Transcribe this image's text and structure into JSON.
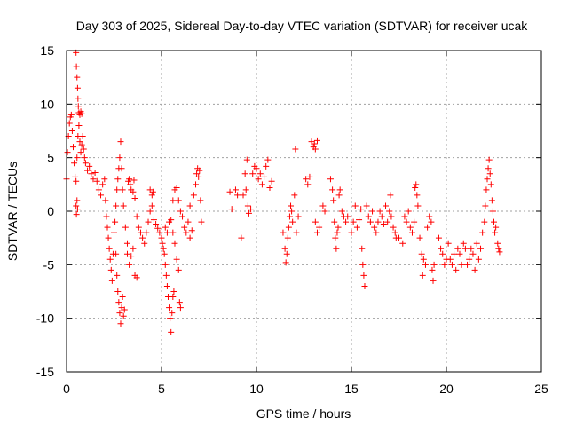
{
  "chart_data": {
    "type": "scatter",
    "title": "Day 303 of 2025, Sidereal Day-to-day VTEC variation (SDTVAR) for receiver ucak",
    "xlabel": "GPS time / hours",
    "ylabel": "SDTVAR / TECUs",
    "xlim": [
      0,
      25
    ],
    "ylim": [
      -15,
      15
    ],
    "xticks": [
      0,
      5,
      10,
      15,
      20,
      25
    ],
    "yticks": [
      -15,
      -10,
      -5,
      0,
      5,
      10,
      15
    ],
    "xtick_labels": [
      "0",
      "5",
      "10",
      "15",
      "20",
      "25"
    ],
    "ytick_labels": [
      "-15",
      "-10",
      "-5",
      "0",
      "5",
      "10",
      "15"
    ],
    "grid": true,
    "marker": "plus",
    "color": "#ff0000",
    "series": [
      {
        "name": "SDTVAR",
        "points": [
          [
            0.0,
            3.0
          ],
          [
            0.05,
            5.5
          ],
          [
            0.1,
            7.0
          ],
          [
            0.15,
            8.2
          ],
          [
            0.2,
            8.8
          ],
          [
            0.25,
            9.0
          ],
          [
            0.3,
            7.5
          ],
          [
            0.35,
            6.0
          ],
          [
            0.4,
            4.5
          ],
          [
            0.45,
            3.2
          ],
          [
            0.5,
            2.8
          ],
          [
            0.55,
            5.0
          ],
          [
            0.6,
            7.0
          ],
          [
            0.65,
            8.0
          ],
          [
            0.7,
            6.5
          ],
          [
            0.75,
            5.5
          ],
          [
            0.8,
            6.2
          ],
          [
            0.85,
            7.0
          ],
          [
            0.9,
            5.8
          ],
          [
            0.95,
            5.0
          ],
          [
            0.5,
            14.8
          ],
          [
            0.52,
            13.5
          ],
          [
            0.55,
            12.5
          ],
          [
            0.58,
            11.5
          ],
          [
            0.6,
            10.5
          ],
          [
            0.62,
            9.8
          ],
          [
            0.65,
            9.2
          ],
          [
            0.7,
            9.0
          ],
          [
            0.75,
            9.3
          ],
          [
            0.8,
            9.1
          ],
          [
            0.5,
            0.5
          ],
          [
            0.52,
            -0.3
          ],
          [
            0.55,
            1.0
          ],
          [
            0.58,
            0.2
          ],
          [
            1.0,
            4.5
          ],
          [
            1.1,
            3.8
          ],
          [
            1.2,
            4.2
          ],
          [
            1.3,
            3.5
          ],
          [
            1.4,
            3.0
          ],
          [
            1.5,
            3.6
          ],
          [
            1.6,
            2.8
          ],
          [
            1.7,
            2.0
          ],
          [
            1.8,
            1.5
          ],
          [
            1.9,
            2.5
          ],
          [
            2.0,
            3.0
          ],
          [
            2.05,
            1.0
          ],
          [
            2.1,
            -0.5
          ],
          [
            2.15,
            -1.5
          ],
          [
            2.2,
            -2.5
          ],
          [
            2.25,
            -3.5
          ],
          [
            2.3,
            -4.5
          ],
          [
            2.35,
            -5.5
          ],
          [
            2.4,
            -6.5
          ],
          [
            2.45,
            -4.0
          ],
          [
            2.5,
            -2.0
          ],
          [
            2.55,
            -1.0
          ],
          [
            2.6,
            0.5
          ],
          [
            2.65,
            2.0
          ],
          [
            2.7,
            3.0
          ],
          [
            2.75,
            4.0
          ],
          [
            2.8,
            5.0
          ],
          [
            2.85,
            6.5
          ],
          [
            2.9,
            4.0
          ],
          [
            2.95,
            2.0
          ],
          [
            2.6,
            -4.0
          ],
          [
            2.65,
            -6.0
          ],
          [
            2.7,
            -7.5
          ],
          [
            2.75,
            -8.5
          ],
          [
            2.8,
            -9.5
          ],
          [
            2.85,
            -10.5
          ],
          [
            2.9,
            -9.0
          ],
          [
            2.95,
            -8.0
          ],
          [
            3.0,
            -9.8
          ],
          [
            3.05,
            -9.2
          ],
          [
            3.0,
            0.5
          ],
          [
            3.1,
            -1.5
          ],
          [
            3.2,
            -3.0
          ],
          [
            3.25,
            2.8
          ],
          [
            3.3,
            3.0
          ],
          [
            3.35,
            2.5
          ],
          [
            3.4,
            2.0
          ],
          [
            3.5,
            1.8
          ],
          [
            3.55,
            2.9
          ],
          [
            3.6,
            1.2
          ],
          [
            3.2,
            -4.0
          ],
          [
            3.3,
            -5.0
          ],
          [
            3.4,
            -4.2
          ],
          [
            3.5,
            -3.5
          ],
          [
            3.6,
            -6.0
          ],
          [
            3.7,
            -6.2
          ],
          [
            3.7,
            -0.5
          ],
          [
            3.8,
            -1.5
          ],
          [
            3.9,
            -2.0
          ],
          [
            4.0,
            -2.5
          ],
          [
            4.1,
            -3.0
          ],
          [
            4.2,
            -2.0
          ],
          [
            4.3,
            -1.0
          ],
          [
            4.4,
            0.0
          ],
          [
            4.5,
            0.5
          ],
          [
            4.55,
            1.8
          ],
          [
            4.4,
            2.0
          ],
          [
            4.5,
            1.5
          ],
          [
            4.6,
            -0.8
          ],
          [
            4.7,
            -1.2
          ],
          [
            4.8,
            -1.6
          ],
          [
            4.9,
            -2.0
          ],
          [
            5.0,
            -2.5
          ],
          [
            5.05,
            -3.0
          ],
          [
            5.1,
            -3.5
          ],
          [
            5.15,
            -4.0
          ],
          [
            5.2,
            -5.0
          ],
          [
            5.25,
            -6.0
          ],
          [
            5.3,
            -7.0
          ],
          [
            5.35,
            -8.0
          ],
          [
            5.4,
            -9.0
          ],
          [
            5.45,
            -10.0
          ],
          [
            5.5,
            -11.3
          ],
          [
            5.55,
            -9.5
          ],
          [
            5.6,
            -8.0
          ],
          [
            5.65,
            -7.5
          ],
          [
            5.2,
            -1.5
          ],
          [
            5.3,
            -2.0
          ],
          [
            5.4,
            -1.0
          ],
          [
            5.5,
            -0.8
          ],
          [
            5.6,
            -2.0
          ],
          [
            5.7,
            -3.0
          ],
          [
            5.8,
            -4.5
          ],
          [
            5.9,
            -5.5
          ],
          [
            5.95,
            -8.5
          ],
          [
            6.0,
            -9.0
          ],
          [
            5.6,
            1.0
          ],
          [
            5.7,
            2.0
          ],
          [
            5.8,
            2.2
          ],
          [
            5.9,
            1.0
          ],
          [
            6.0,
            0.0
          ],
          [
            6.1,
            -0.5
          ],
          [
            6.2,
            -1.5
          ],
          [
            6.3,
            -2.0
          ],
          [
            6.4,
            -1.0
          ],
          [
            6.5,
            0.5
          ],
          [
            6.5,
            -2.5
          ],
          [
            6.6,
            -1.8
          ],
          [
            6.7,
            1.5
          ],
          [
            6.8,
            2.5
          ],
          [
            6.85,
            3.5
          ],
          [
            6.9,
            4.0
          ],
          [
            6.95,
            3.2
          ],
          [
            7.0,
            3.8
          ],
          [
            7.05,
            1.0
          ],
          [
            7.1,
            -1.0
          ],
          [
            8.6,
            1.8
          ],
          [
            8.7,
            0.2
          ],
          [
            8.9,
            2.0
          ],
          [
            9.0,
            1.5
          ],
          [
            9.2,
            -2.5
          ],
          [
            9.3,
            1.5
          ],
          [
            9.4,
            3.5
          ],
          [
            9.45,
            2.0
          ],
          [
            9.5,
            4.8
          ],
          [
            9.55,
            0.5
          ],
          [
            9.6,
            -0.2
          ],
          [
            9.7,
            0.2
          ],
          [
            9.8,
            3.5
          ],
          [
            9.9,
            4.2
          ],
          [
            10.0,
            4.0
          ],
          [
            10.1,
            3.0
          ],
          [
            10.2,
            3.5
          ],
          [
            10.3,
            2.5
          ],
          [
            10.4,
            3.2
          ],
          [
            10.5,
            4.2
          ],
          [
            10.6,
            4.8
          ],
          [
            10.7,
            2.2
          ],
          [
            10.8,
            2.8
          ],
          [
            11.4,
            -2.0
          ],
          [
            11.5,
            -3.5
          ],
          [
            11.55,
            -4.8
          ],
          [
            11.6,
            -4.0
          ],
          [
            11.65,
            -2.5
          ],
          [
            11.7,
            -1.5
          ],
          [
            11.75,
            -0.5
          ],
          [
            11.8,
            0.5
          ],
          [
            11.85,
            0.0
          ],
          [
            11.9,
            -1.0
          ],
          [
            12.0,
            1.5
          ],
          [
            12.05,
            5.8
          ],
          [
            12.1,
            -2.0
          ],
          [
            12.2,
            -0.5
          ],
          [
            12.6,
            3.0
          ],
          [
            12.7,
            2.5
          ],
          [
            12.8,
            3.2
          ],
          [
            12.9,
            6.5
          ],
          [
            13.0,
            6.0
          ],
          [
            13.05,
            6.3
          ],
          [
            13.1,
            5.8
          ],
          [
            13.2,
            6.6
          ],
          [
            13.1,
            -1.0
          ],
          [
            13.2,
            -2.0
          ],
          [
            13.3,
            -1.5
          ],
          [
            13.5,
            0.5
          ],
          [
            13.6,
            0.0
          ],
          [
            13.9,
            3.0
          ],
          [
            14.0,
            2.0
          ],
          [
            14.05,
            1.0
          ],
          [
            14.1,
            -1.0
          ],
          [
            14.15,
            -2.5
          ],
          [
            14.2,
            -3.5
          ],
          [
            14.25,
            -2.0
          ],
          [
            14.3,
            -1.5
          ],
          [
            14.35,
            1.5
          ],
          [
            14.4,
            2.0
          ],
          [
            14.5,
            0.0
          ],
          [
            14.6,
            -0.5
          ],
          [
            14.7,
            -1.0
          ],
          [
            14.8,
            -0.5
          ],
          [
            15.0,
            -2.0
          ],
          [
            15.1,
            -1.0
          ],
          [
            15.2,
            0.5
          ],
          [
            15.3,
            -1.5
          ],
          [
            15.4,
            -0.8
          ],
          [
            15.5,
            0.2
          ],
          [
            15.55,
            -3.5
          ],
          [
            15.6,
            -5.0
          ],
          [
            15.65,
            -6.0
          ],
          [
            15.7,
            -7.0
          ],
          [
            15.8,
            0.5
          ],
          [
            15.9,
            -0.5
          ],
          [
            16.0,
            -1.0
          ],
          [
            16.1,
            0.0
          ],
          [
            16.2,
            -1.5
          ],
          [
            16.3,
            -2.0
          ],
          [
            16.4,
            -1.0
          ],
          [
            16.5,
            0.0
          ],
          [
            16.6,
            -0.5
          ],
          [
            16.7,
            -1.2
          ],
          [
            16.8,
            0.5
          ],
          [
            16.9,
            -1.0
          ],
          [
            17.0,
            0.0
          ],
          [
            17.05,
            1.5
          ],
          [
            17.1,
            -0.5
          ],
          [
            17.2,
            -1.5
          ],
          [
            17.3,
            -2.0
          ],
          [
            17.35,
            -2.5
          ],
          [
            17.5,
            -2.5
          ],
          [
            17.7,
            -3.0
          ],
          [
            17.8,
            -0.5
          ],
          [
            17.9,
            -1.0
          ],
          [
            18.0,
            0.0
          ],
          [
            18.1,
            -1.5
          ],
          [
            18.2,
            -2.0
          ],
          [
            18.3,
            -1.0
          ],
          [
            18.35,
            2.2
          ],
          [
            18.4,
            2.5
          ],
          [
            18.45,
            1.5
          ],
          [
            18.5,
            0.5
          ],
          [
            18.6,
            -2.5
          ],
          [
            18.7,
            -4.0
          ],
          [
            18.75,
            -6.0
          ],
          [
            18.8,
            -4.5
          ],
          [
            18.9,
            -5.0
          ],
          [
            19.0,
            -1.5
          ],
          [
            19.1,
            -0.5
          ],
          [
            19.2,
            -1.0
          ],
          [
            19.25,
            -5.5
          ],
          [
            19.3,
            -6.5
          ],
          [
            19.35,
            -5.0
          ],
          [
            19.6,
            -2.5
          ],
          [
            19.7,
            -3.5
          ],
          [
            19.8,
            -4.0
          ],
          [
            19.9,
            -5.0
          ],
          [
            20.0,
            -4.5
          ],
          [
            20.1,
            -3.0
          ],
          [
            20.2,
            -4.5
          ],
          [
            20.3,
            -5.0
          ],
          [
            20.4,
            -4.0
          ],
          [
            20.5,
            -5.5
          ],
          [
            20.6,
            -3.5
          ],
          [
            20.7,
            -4.0
          ],
          [
            20.8,
            -5.0
          ],
          [
            20.9,
            -3.0
          ],
          [
            21.0,
            -3.5
          ],
          [
            21.1,
            -5.0
          ],
          [
            21.2,
            -4.5
          ],
          [
            21.3,
            -3.5
          ],
          [
            21.4,
            -4.0
          ],
          [
            21.5,
            -5.5
          ],
          [
            21.6,
            -3.0
          ],
          [
            21.7,
            -4.5
          ],
          [
            21.8,
            -3.5
          ],
          [
            21.9,
            -2.0
          ],
          [
            22.0,
            -1.0
          ],
          [
            22.05,
            0.5
          ],
          [
            22.1,
            2.0
          ],
          [
            22.15,
            3.0
          ],
          [
            22.2,
            4.0
          ],
          [
            22.25,
            4.8
          ],
          [
            22.3,
            3.5
          ],
          [
            22.35,
            2.5
          ],
          [
            22.4,
            1.0
          ],
          [
            22.45,
            0.0
          ],
          [
            22.5,
            -1.0
          ],
          [
            22.55,
            -2.0
          ],
          [
            22.6,
            -1.5
          ],
          [
            22.7,
            -3.0
          ],
          [
            22.75,
            -3.5
          ],
          [
            22.8,
            -3.8
          ]
        ]
      }
    ]
  }
}
